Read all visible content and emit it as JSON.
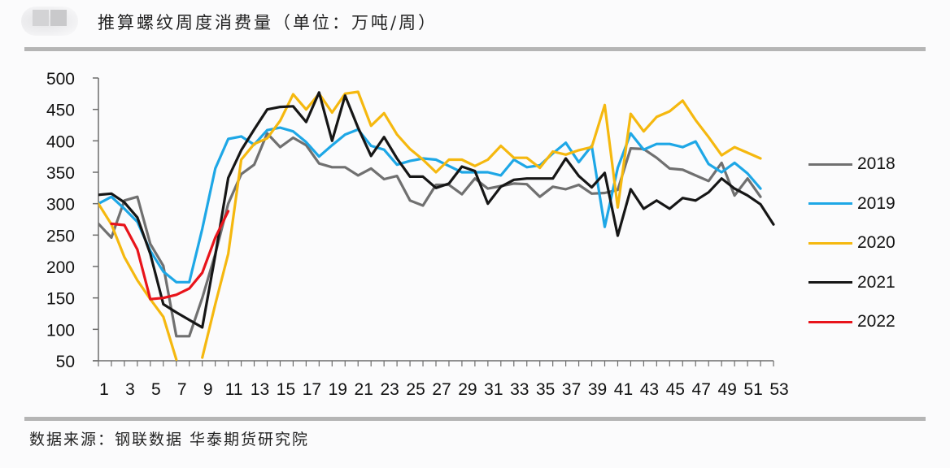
{
  "header": {
    "title": "推算螺纹周度消费量（单位：万吨/周）"
  },
  "footer": {
    "source": "数据来源：钢联数据 华泰期货研究院"
  },
  "chart_data": {
    "type": "line",
    "title": "推算螺纹周度消费量（单位：万吨/周）",
    "xlabel": "",
    "ylabel": "",
    "ylim": [
      50,
      500
    ],
    "xlim": [
      1,
      53
    ],
    "yticks": [
      50,
      100,
      150,
      200,
      250,
      300,
      350,
      400,
      450,
      500
    ],
    "xtick_labels": [
      "1",
      "3",
      "5",
      "7",
      "9",
      "11",
      "13",
      "15",
      "17",
      "19",
      "21",
      "23",
      "25",
      "27",
      "29",
      "31",
      "33",
      "35",
      "37",
      "39",
      "41",
      "43",
      "45",
      "47",
      "49",
      "51",
      "53"
    ],
    "grid": false,
    "legend_position": "right",
    "x": [
      1,
      2,
      3,
      4,
      5,
      6,
      7,
      8,
      9,
      10,
      11,
      12,
      13,
      14,
      15,
      16,
      17,
      18,
      19,
      20,
      21,
      22,
      23,
      24,
      25,
      26,
      27,
      28,
      29,
      30,
      31,
      32,
      33,
      34,
      35,
      36,
      37,
      38,
      39,
      40,
      41,
      42,
      43,
      44,
      45,
      46,
      47,
      48,
      49,
      50,
      51,
      52,
      53
    ],
    "series": [
      {
        "name": "2018",
        "color": "#707070",
        "values": [
          268,
          246,
          305,
          311,
          236,
          201,
          89,
          89,
          150,
          220,
          300,
          347,
          362,
          412,
          390,
          405,
          393,
          364,
          358,
          358,
          345,
          356,
          339,
          344,
          305,
          297,
          330,
          330,
          315,
          340,
          324,
          328,
          332,
          331,
          311,
          327,
          323,
          330,
          316,
          317,
          322,
          388,
          387,
          373,
          356,
          354,
          345,
          336,
          365,
          313,
          340,
          311,
          null
        ]
      },
      {
        "name": "2019",
        "color": "#1ea7e6",
        "values": [
          300,
          311,
          292,
          271,
          225,
          192,
          175,
          175,
          260,
          356,
          403,
          407,
          394,
          417,
          421,
          415,
          398,
          375,
          393,
          410,
          418,
          392,
          386,
          362,
          368,
          372,
          370,
          360,
          350,
          350,
          350,
          345,
          370,
          358,
          361,
          380,
          397,
          366,
          392,
          263,
          357,
          412,
          386,
          395,
          395,
          390,
          399,
          363,
          350,
          365,
          348,
          324,
          null
        ]
      },
      {
        "name": "2020",
        "color": "#f5b80f",
        "values": [
          300,
          267,
          215,
          178,
          148,
          120,
          52,
          null,
          55,
          140,
          220,
          370,
          395,
          404,
          432,
          474,
          450,
          475,
          445,
          475,
          478,
          424,
          444,
          410,
          387,
          370,
          350,
          370,
          370,
          360,
          370,
          392,
          373,
          373,
          357,
          383,
          378,
          385,
          390,
          457,
          294,
          443,
          415,
          438,
          447,
          464,
          433,
          406,
          377,
          390,
          381,
          372,
          null
        ]
      },
      {
        "name": "2021",
        "color": "#161616",
        "values": [
          314,
          316,
          302,
          278,
          220,
          140,
          127,
          115,
          103,
          218,
          341,
          385,
          418,
          450,
          454,
          455,
          430,
          477,
          400,
          472,
          421,
          376,
          406,
          372,
          343,
          343,
          325,
          332,
          359,
          352,
          300,
          327,
          338,
          340,
          340,
          340,
          372,
          344,
          326,
          349,
          249,
          323,
          292,
          305,
          292,
          309,
          305,
          318,
          340,
          324,
          313,
          299,
          267
        ]
      },
      {
        "name": "2022",
        "color": "#e8141b",
        "values": [
          null,
          268,
          266,
          227,
          148,
          150,
          155,
          165,
          190,
          246,
          288,
          null,
          null,
          null,
          null,
          null,
          null,
          null,
          null,
          null,
          null,
          null,
          null,
          null,
          null,
          null,
          null,
          null,
          null,
          null,
          null,
          null,
          null,
          null,
          null,
          null,
          null,
          null,
          null,
          null,
          null,
          null,
          null,
          null,
          null,
          null,
          null,
          null,
          null,
          null,
          null,
          null,
          null
        ]
      }
    ]
  },
  "legend": {
    "items": [
      {
        "label": "2018",
        "color": "#707070"
      },
      {
        "label": "2019",
        "color": "#1ea7e6"
      },
      {
        "label": "2020",
        "color": "#f5b80f"
      },
      {
        "label": "2021",
        "color": "#161616"
      },
      {
        "label": "2022",
        "color": "#e8141b"
      }
    ]
  }
}
